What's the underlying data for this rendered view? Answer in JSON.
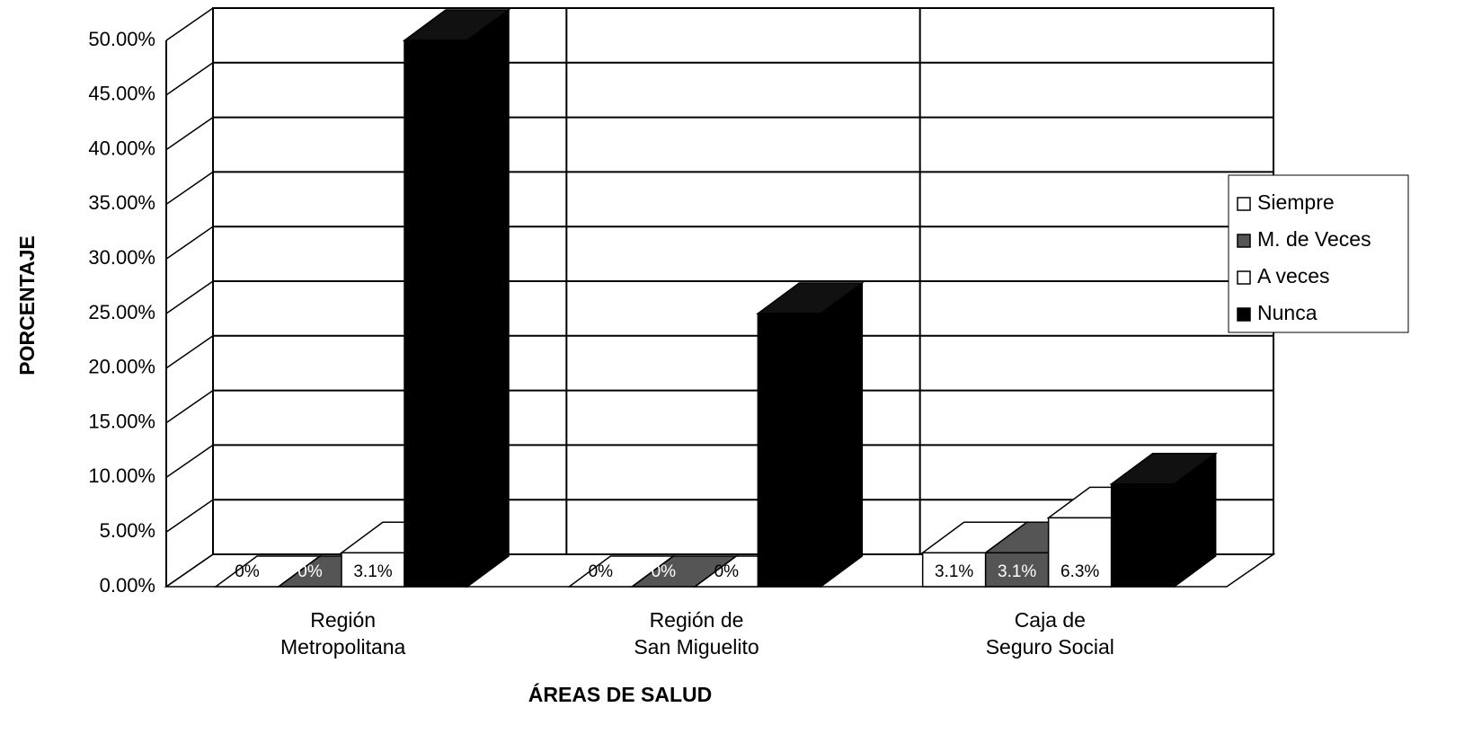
{
  "chart_data": {
    "type": "bar3d",
    "x_label": "ÁREAS DE SALUD",
    "y_label": "PORCENTAJE",
    "categories": [
      "Región\nMetropolitana",
      "Región de\nSan Miguelito",
      "Caja de\nSeguro Social"
    ],
    "series": [
      {
        "name": "Siempre",
        "color": "#ffffff",
        "values": [
          0,
          0,
          3.1
        ],
        "value_labels": [
          "0%",
          "0%",
          "3.1%"
        ]
      },
      {
        "name": "M. de Veces",
        "color": "#555555",
        "values": [
          0,
          0,
          3.1
        ],
        "value_labels": [
          "0%",
          "0%",
          "3.1%"
        ]
      },
      {
        "name": "A veces",
        "color": "#ffffff",
        "values": [
          3.1,
          0,
          6.3
        ],
        "value_labels": [
          "3.1%",
          "0%",
          "6.3%"
        ]
      },
      {
        "name": "Nunca",
        "color": "#000000",
        "values": [
          50,
          25,
          9.4
        ],
        "value_labels": [
          null,
          null,
          null
        ]
      }
    ],
    "ylim": [
      0,
      50
    ],
    "yticks": [
      {
        "value": 0,
        "label": "0.00%"
      },
      {
        "value": 5,
        "label": "5.00%"
      },
      {
        "value": 10,
        "label": "10.00%"
      },
      {
        "value": 15,
        "label": "15.00%"
      },
      {
        "value": 20,
        "label": "20.00%"
      },
      {
        "value": 25,
        "label": "25.00%"
      },
      {
        "value": 30,
        "label": "30.00%"
      },
      {
        "value": 35,
        "label": "35.00%"
      },
      {
        "value": 40,
        "label": "40.00%"
      },
      {
        "value": 45,
        "label": "45.00%"
      },
      {
        "value": 50,
        "label": "50.00%"
      }
    ],
    "grid": true,
    "legend": "right"
  }
}
